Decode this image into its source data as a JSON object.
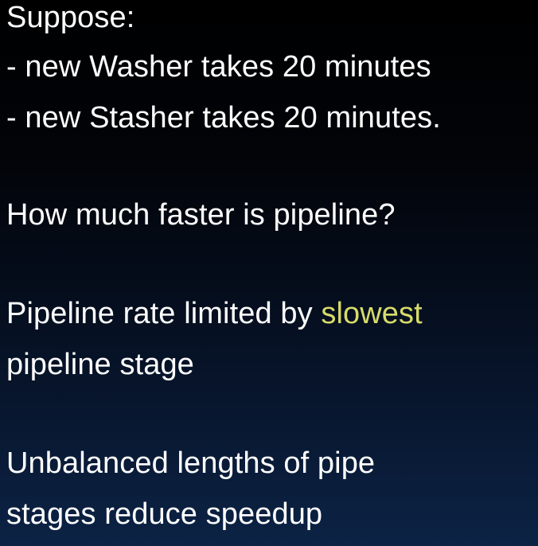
{
  "slide": {
    "lines": [
      "Suppose:",
      "- new Washer takes 20 minutes",
      "- new Stasher takes 20 minutes.",
      "How much faster is pipeline?",
      "Pipeline rate limited by ",
      "pipeline stage",
      "Unbalanced lengths of pipe",
      "stages reduce speedup"
    ],
    "highlight_word": "slowest"
  },
  "colors": {
    "text": "#ffffff",
    "highlight": "#d8db6a",
    "background_top": "#000000",
    "background_bottom": "#0c2345"
  }
}
